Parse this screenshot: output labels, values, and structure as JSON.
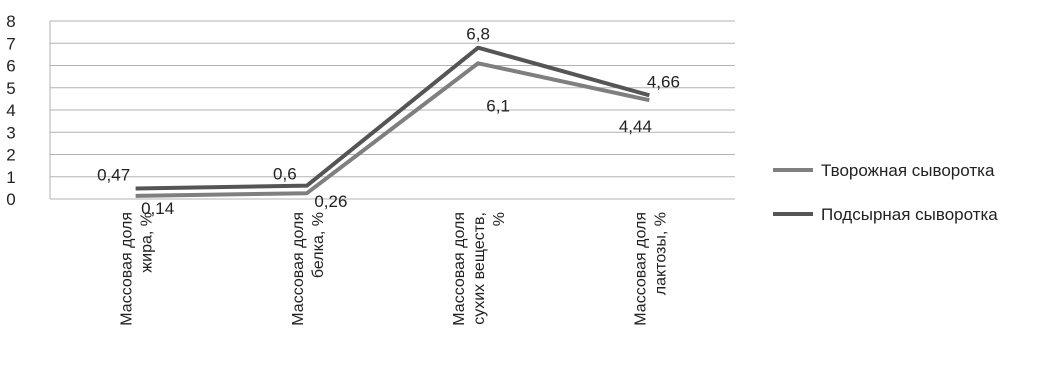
{
  "chart_data": {
    "type": "line",
    "title": "",
    "xlabel": "",
    "ylabel": "",
    "ylim": [
      0,
      8
    ],
    "yticks": [
      "0",
      "1",
      "2",
      "3",
      "4",
      "5",
      "6",
      "7",
      "8"
    ],
    "grid": true,
    "legend_position": "right",
    "categories": [
      [
        "Массовая доля",
        "жира, %"
      ],
      [
        "Массовая доля",
        "белка, %"
      ],
      [
        "Массовая доля",
        "сухих веществ,",
        "%"
      ],
      [
        "Массовая доля",
        "лактозы, %"
      ]
    ],
    "series": [
      {
        "name": "Творожная сыворотка",
        "values": [
          0.14,
          0.26,
          6.1,
          4.44
        ],
        "labels": [
          "0,14",
          "0,26",
          "6,1",
          "4,44"
        ],
        "color": "#7f7f7f"
      },
      {
        "name": "Подсырная сыворотка",
        "values": [
          0.47,
          0.6,
          6.8,
          4.66
        ],
        "labels": [
          "0,47",
          "0,6",
          "6,8",
          "4,66"
        ],
        "color": "#555555"
      }
    ]
  }
}
